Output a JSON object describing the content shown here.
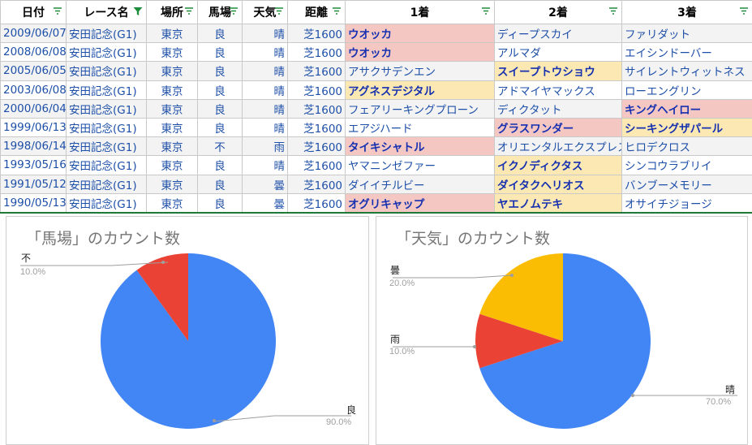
{
  "headers": [
    "日付",
    "レース名",
    "場所",
    "馬場",
    "天気",
    "距離",
    "1着",
    "2着",
    "3着"
  ],
  "rows": [
    {
      "date": "2009/06/07",
      "race": "安田記念(G1)",
      "venue": "東京",
      "track": "良",
      "weather": "晴",
      "dist": "芝1600",
      "first": "ウオッカ",
      "second": "ディープスカイ",
      "third": "ファリダット"
    },
    {
      "date": "2008/06/08",
      "race": "安田記念(G1)",
      "venue": "東京",
      "track": "良",
      "weather": "晴",
      "dist": "芝1600",
      "first": "ウオッカ",
      "second": "アルマダ",
      "third": "エイシンドーバー"
    },
    {
      "date": "2005/06/05",
      "race": "安田記念(G1)",
      "venue": "東京",
      "track": "良",
      "weather": "晴",
      "dist": "芝1600",
      "first": "アサクサデンエン",
      "second": "スイープトウショウ",
      "third": "サイレントウィットネス"
    },
    {
      "date": "2003/06/08",
      "race": "安田記念(G1)",
      "venue": "東京",
      "track": "良",
      "weather": "晴",
      "dist": "芝1600",
      "first": "アグネスデジタル",
      "second": "アドマイヤマックス",
      "third": "ローエングリン"
    },
    {
      "date": "2000/06/04",
      "race": "安田記念(G1)",
      "venue": "東京",
      "track": "良",
      "weather": "晴",
      "dist": "芝1600",
      "first": "フェアリーキングプローン",
      "second": "ディクタット",
      "third": "キングヘイロー"
    },
    {
      "date": "1999/06/13",
      "race": "安田記念(G1)",
      "venue": "東京",
      "track": "良",
      "weather": "晴",
      "dist": "芝1600",
      "first": "エアジハード",
      "second": "グラスワンダー",
      "third": "シーキングザパール"
    },
    {
      "date": "1998/06/14",
      "race": "安田記念(G1)",
      "venue": "東京",
      "track": "不",
      "weather": "雨",
      "dist": "芝1600",
      "first": "タイキシャトル",
      "second": "オリエンタルエクスプレス",
      "third": "ヒロデクロス"
    },
    {
      "date": "1993/05/16",
      "race": "安田記念(G1)",
      "venue": "東京",
      "track": "良",
      "weather": "晴",
      "dist": "芝1600",
      "first": "ヤマニンゼファー",
      "second": "イクノディクタス",
      "third": "シンコウラブリイ"
    },
    {
      "date": "1991/05/12",
      "race": "安田記念(G1)",
      "venue": "東京",
      "track": "良",
      "weather": "曇",
      "dist": "芝1600",
      "first": "ダイイチルビー",
      "second": "ダイタクヘリオス",
      "third": "バンブーメモリー"
    },
    {
      "date": "1990/05/13",
      "race": "安田記念(G1)",
      "venue": "東京",
      "track": "良",
      "weather": "曇",
      "dist": "芝1600",
      "first": "オグリキャップ",
      "second": "ヤエノムテキ",
      "third": "オサイチジョージ"
    }
  ],
  "cell_styles": [
    {
      "first": "pink-b",
      "second": "",
      "third": ""
    },
    {
      "first": "pink-b",
      "second": "",
      "third": ""
    },
    {
      "first": "",
      "second": "yellow-b",
      "third": ""
    },
    {
      "first": "yellow-b",
      "second": "",
      "third": ""
    },
    {
      "first": "",
      "second": "",
      "third": "pink-b"
    },
    {
      "first": "",
      "second": "pink-b",
      "third": "yellow-b"
    },
    {
      "first": "pink-b",
      "second": "",
      "third": ""
    },
    {
      "first": "",
      "second": "yellow-b",
      "third": ""
    },
    {
      "first": "",
      "second": "yellow-b",
      "third": ""
    },
    {
      "first": "pink-b",
      "second": "yellow-b",
      "third": ""
    }
  ],
  "colors": {
    "blue": "#4285f4",
    "red": "#ea4335",
    "yellow": "#fbbc04",
    "filter_green": "#1e8e3e",
    "race_filter_active": "#1e8e3e"
  },
  "charts": {
    "track_chart": {
      "title": "「馬場」のカウント数",
      "labels": [
        "良",
        "不"
      ],
      "pct_labels": [
        "90.0%",
        "10.0%"
      ]
    },
    "weather_chart": {
      "title": "「天気」のカウント数",
      "labels": [
        "晴",
        "雨",
        "曇"
      ],
      "pct_labels": [
        "70.0%",
        "10.0%",
        "20.0%"
      ]
    }
  },
  "chart_data": [
    {
      "type": "pie",
      "title": "「馬場」のカウント数",
      "categories": [
        "良",
        "不"
      ],
      "values": [
        90.0,
        10.0
      ],
      "colors": [
        "#4285f4",
        "#ea4335"
      ]
    },
    {
      "type": "pie",
      "title": "「天気」のカウント数",
      "categories": [
        "晴",
        "雨",
        "曇"
      ],
      "values": [
        70.0,
        10.0,
        20.0
      ],
      "colors": [
        "#4285f4",
        "#ea4335",
        "#fbbc04"
      ]
    }
  ]
}
